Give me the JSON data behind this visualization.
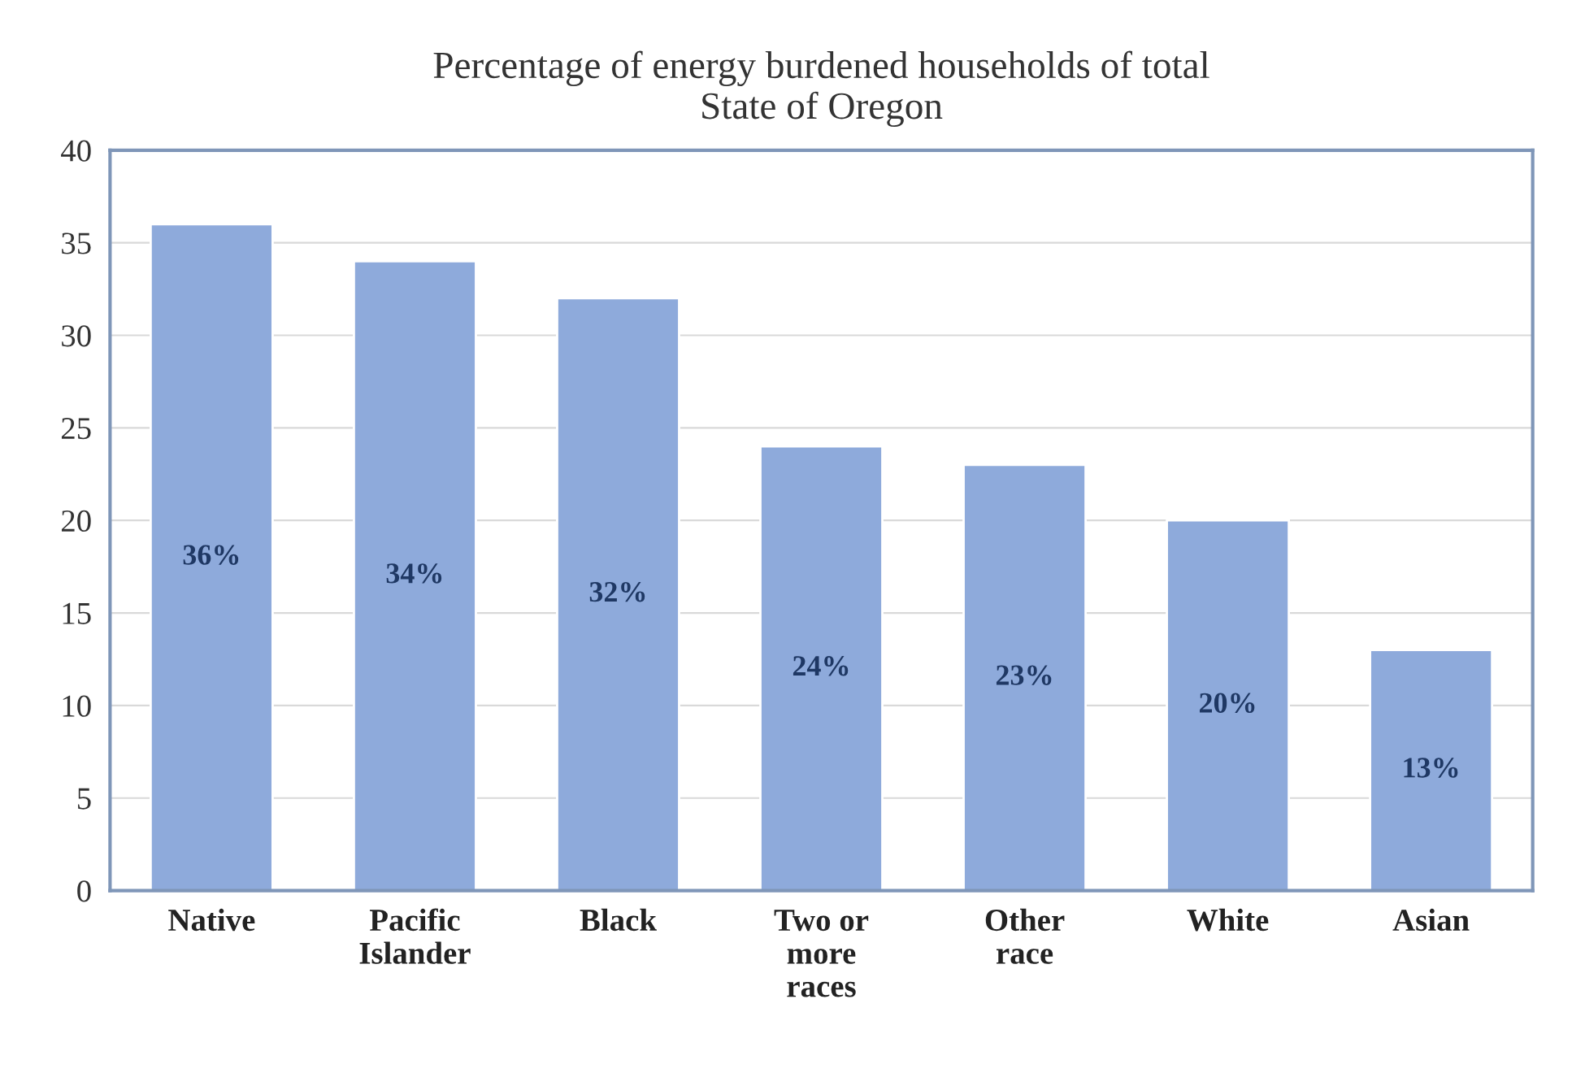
{
  "chart_data": {
    "type": "bar",
    "title": "Percentage of energy burdened households of total\nState of Oregon",
    "categories": [
      "Native",
      "Pacific\nIslander",
      "Black",
      "Two or\nmore\nraces",
      "Other\nrace",
      "White",
      "Asian"
    ],
    "values": [
      36,
      34,
      32,
      24,
      23,
      20,
      13
    ],
    "value_labels": [
      "36%",
      "34%",
      "32%",
      "24%",
      "23%",
      "20%",
      "13%"
    ],
    "color": "#8eaadb",
    "ylim": [
      0,
      40
    ],
    "yticks": [
      0,
      5,
      10,
      15,
      20,
      25,
      30,
      35,
      40
    ],
    "grid": "y",
    "legend": false
  }
}
